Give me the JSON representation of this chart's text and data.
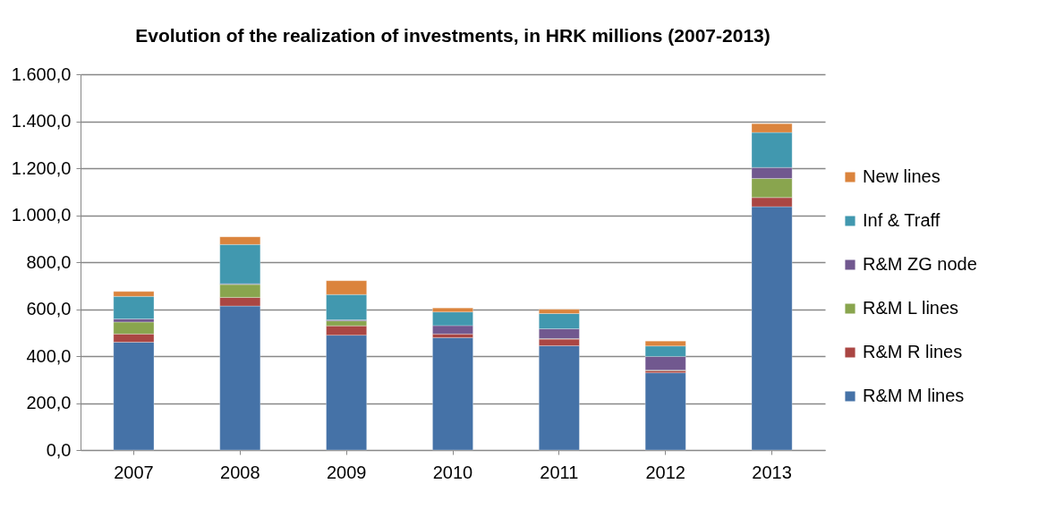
{
  "chart_data": {
    "type": "bar",
    "title": "Evolution of the realization of investments, in HRK millions (2007-2013)",
    "categories": [
      "2007",
      "2008",
      "2009",
      "2010",
      "2011",
      "2012",
      "2013"
    ],
    "stacked": true,
    "series": [
      {
        "name": "R&M M lines",
        "color": "#4572a7",
        "values": [
          459,
          613,
          489,
          478,
          444,
          329,
          1036
        ]
      },
      {
        "name": "R&M R lines",
        "color": "#aa4643",
        "values": [
          35,
          37,
          40,
          16,
          28,
          9,
          39
        ]
      },
      {
        "name": "R&M L lines",
        "color": "#89a54e",
        "values": [
          51,
          55,
          21,
          null,
          2,
          2,
          81
        ]
      },
      {
        "name": "R&M ZG node",
        "color": "#71588f",
        "values": [
          13,
          3,
          4,
          36,
          42,
          58,
          47
        ]
      },
      {
        "name": "Inf & Traff",
        "color": "#4198af",
        "values": [
          96,
          167,
          108,
          58,
          65,
          45,
          149
        ]
      },
      {
        "name": "New lines",
        "color": "#db843d",
        "values": [
          21,
          33,
          59,
          17,
          18,
          21,
          38
        ]
      }
    ],
    "ylim": [
      0,
      1600
    ],
    "yticks": [
      {
        "value": 0,
        "label": "0,0"
      },
      {
        "value": 200,
        "label": "200,0"
      },
      {
        "value": 400,
        "label": "400,0"
      },
      {
        "value": 600,
        "label": "600,0"
      },
      {
        "value": 800,
        "label": "800,0"
      },
      {
        "value": 1000,
        "label": "1.000,0"
      },
      {
        "value": 1200,
        "label": "1.200,0"
      },
      {
        "value": 1400,
        "label": "1.400,0"
      },
      {
        "value": 1600,
        "label": "1.600,0"
      }
    ],
    "grid": "y",
    "legend": "right"
  }
}
